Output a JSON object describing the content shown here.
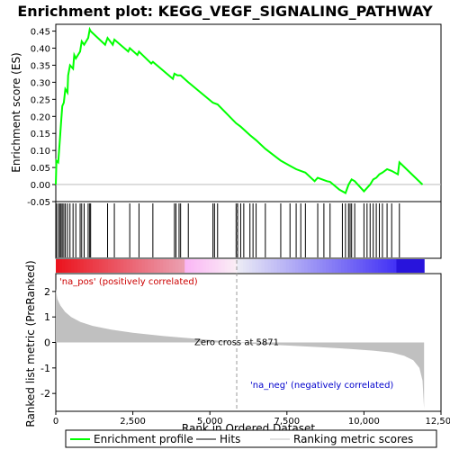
{
  "chart_data": {
    "type": "line",
    "title": "Enrichment plot: KEGG_VEGF_SIGNALING_PATHWAY",
    "xlabel": "Rank in Ordered Dataset",
    "ylabel_top": "Enrichment score (ES)",
    "ylabel_bottom": "Ranked list metric (PreRanked)",
    "xlim": [
      0,
      12500
    ],
    "ylim_top": [
      -0.05,
      0.47
    ],
    "ylim_bottom": [
      -2.7,
      2.7
    ],
    "x_ticks": [
      0,
      2500,
      5000,
      7500,
      10000,
      12500
    ],
    "x_tick_labels": [
      "0",
      "2,500",
      "5,000",
      "7,500",
      "10,000",
      "12,500"
    ],
    "y_ticks_top": [
      -0.05,
      0.0,
      0.05,
      0.1,
      0.15,
      0.2,
      0.25,
      0.3,
      0.35,
      0.4,
      0.45
    ],
    "y_tick_labels_top": [
      "-0.05",
      "0.00",
      "0.05",
      "0.10",
      "0.15",
      "0.20",
      "0.25",
      "0.30",
      "0.35",
      "0.40",
      "0.45"
    ],
    "y_ticks_bottom": [
      -2,
      -1,
      0,
      1,
      2
    ],
    "y_tick_labels_bottom": [
      "-2",
      "-1",
      "0",
      "1",
      "2"
    ],
    "total_genes": 11950,
    "zero_cross_rank": 5871,
    "annotations": {
      "zero_cross": "Zero cross at 5871",
      "pos_label": "'na_pos' (positively correlated)",
      "neg_label": "'na_neg' (negatively correlated)"
    },
    "legend": [
      {
        "label": "Enrichment profile",
        "color": "#00ff00"
      },
      {
        "label": "Hits",
        "color": "#000000"
      },
      {
        "label": "Ranking metric scores",
        "color": "#c0c0c0"
      }
    ],
    "colors": {
      "profile": "#00ff00",
      "hits": "#000000",
      "metric_fill": "#c0c0c0",
      "pos_text": "#cc0000",
      "neg_text": "#0000cc"
    },
    "hits": [
      20,
      80,
      130,
      170,
      210,
      260,
      310,
      380,
      460,
      560,
      650,
      790,
      840,
      920,
      1050,
      1100,
      1130,
      1680,
      1900,
      2400,
      2700,
      3150,
      3850,
      3900,
      4000,
      4050,
      4300,
      5100,
      5150,
      5250,
      5850,
      5900,
      6000,
      6100,
      6300,
      6400,
      6500,
      6800,
      7300,
      7600,
      7800,
      7950,
      8100,
      8500,
      8700,
      8900,
      9300,
      9400,
      9500,
      9550,
      9600,
      9700,
      10000,
      10100,
      10200,
      10300,
      10400,
      10500,
      10600,
      10750,
      10900,
      11150
    ],
    "es_curve": [
      [
        0,
        0.0
      ],
      [
        20,
        0.07
      ],
      [
        80,
        0.065
      ],
      [
        130,
        0.13
      ],
      [
        170,
        0.18
      ],
      [
        210,
        0.23
      ],
      [
        260,
        0.24
      ],
      [
        310,
        0.28
      ],
      [
        380,
        0.27
      ],
      [
        400,
        0.32
      ],
      [
        460,
        0.35
      ],
      [
        560,
        0.34
      ],
      [
        600,
        0.38
      ],
      [
        650,
        0.37
      ],
      [
        790,
        0.39
      ],
      [
        840,
        0.42
      ],
      [
        920,
        0.41
      ],
      [
        1050,
        0.43
      ],
      [
        1100,
        0.455
      ],
      [
        1130,
        0.45
      ],
      [
        1600,
        0.41
      ],
      [
        1680,
        0.43
      ],
      [
        1850,
        0.41
      ],
      [
        1900,
        0.425
      ],
      [
        2350,
        0.39
      ],
      [
        2400,
        0.4
      ],
      [
        2650,
        0.38
      ],
      [
        2700,
        0.39
      ],
      [
        3100,
        0.355
      ],
      [
        3150,
        0.36
      ],
      [
        3800,
        0.31
      ],
      [
        3850,
        0.325
      ],
      [
        3950,
        0.32
      ],
      [
        4050,
        0.32
      ],
      [
        4300,
        0.3
      ],
      [
        5100,
        0.24
      ],
      [
        5250,
        0.235
      ],
      [
        5850,
        0.18
      ],
      [
        6000,
        0.17
      ],
      [
        6300,
        0.145
      ],
      [
        6500,
        0.13
      ],
      [
        6800,
        0.105
      ],
      [
        7300,
        0.07
      ],
      [
        7600,
        0.055
      ],
      [
        7800,
        0.045
      ],
      [
        8100,
        0.035
      ],
      [
        8400,
        0.01
      ],
      [
        8500,
        0.02
      ],
      [
        8800,
        0.01
      ],
      [
        8900,
        0.008
      ],
      [
        9200,
        -0.015
      ],
      [
        9400,
        -0.025
      ],
      [
        9500,
        0.0
      ],
      [
        9600,
        0.015
      ],
      [
        9700,
        0.01
      ],
      [
        9950,
        -0.015
      ],
      [
        10000,
        -0.02
      ],
      [
        10100,
        -0.01
      ],
      [
        10200,
        0.0
      ],
      [
        10300,
        0.015
      ],
      [
        10400,
        0.02
      ],
      [
        10500,
        0.03
      ],
      [
        10600,
        0.035
      ],
      [
        10750,
        0.045
      ],
      [
        10900,
        0.04
      ],
      [
        11100,
        0.03
      ],
      [
        11150,
        0.065
      ],
      [
        11900,
        0.0
      ]
    ],
    "metric_curve": [
      [
        0,
        2.1
      ],
      [
        50,
        1.7
      ],
      [
        150,
        1.45
      ],
      [
        300,
        1.2
      ],
      [
        500,
        1.0
      ],
      [
        800,
        0.8
      ],
      [
        1200,
        0.65
      ],
      [
        1800,
        0.5
      ],
      [
        2500,
        0.38
      ],
      [
        3500,
        0.25
      ],
      [
        4500,
        0.15
      ],
      [
        5500,
        0.05
      ],
      [
        5871,
        0.0
      ],
      [
        6500,
        -0.06
      ],
      [
        7500,
        -0.12
      ],
      [
        8500,
        -0.18
      ],
      [
        9500,
        -0.25
      ],
      [
        10300,
        -0.32
      ],
      [
        10900,
        -0.4
      ],
      [
        11300,
        -0.52
      ],
      [
        11600,
        -0.7
      ],
      [
        11800,
        -1.0
      ],
      [
        11900,
        -1.5
      ],
      [
        11950,
        -2.6
      ]
    ]
  }
}
